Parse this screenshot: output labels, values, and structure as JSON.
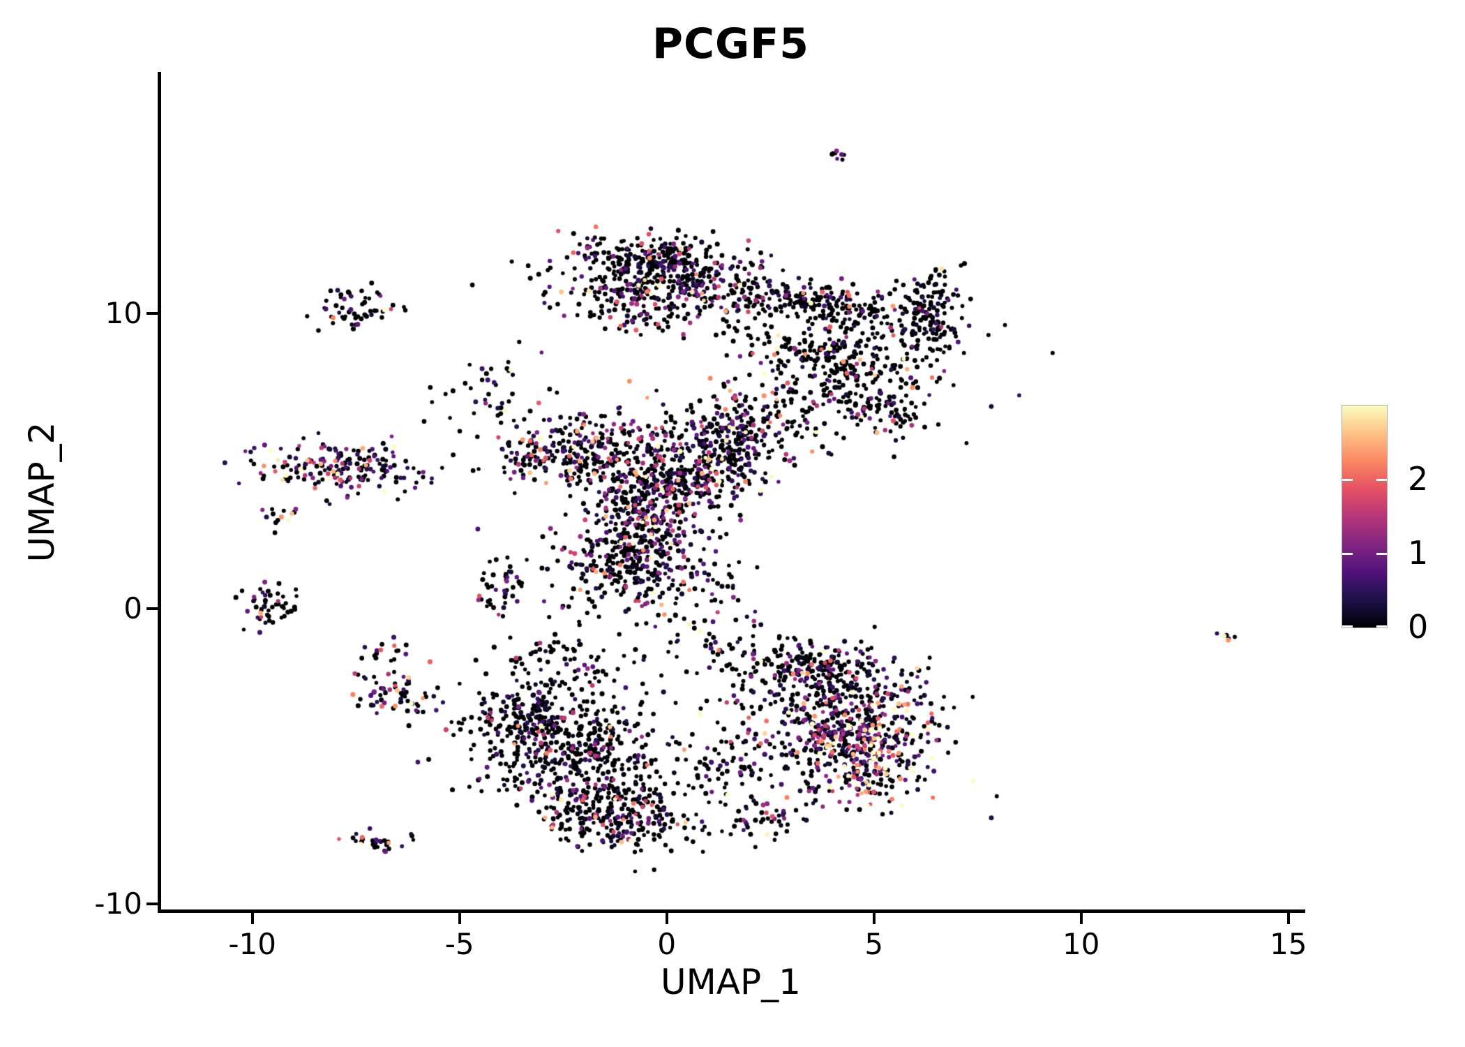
{
  "title": "PCGF5",
  "axes": {
    "x": {
      "label": "UMAP_1",
      "ticks": [
        -10,
        -5,
        0,
        5,
        10,
        15
      ],
      "range": [
        -12.25,
        15.34
      ]
    },
    "y": {
      "label": "UMAP_2",
      "ticks": [
        -10,
        0,
        10
      ],
      "range": [
        -10.24,
        18.13
      ]
    }
  },
  "colorbar": {
    "ticks": [
      0,
      1,
      2
    ],
    "vmin": 0,
    "vmax": 3,
    "palette": "magma",
    "palette_stops": [
      [
        0.0,
        "#000004"
      ],
      [
        0.125,
        "#1d1147"
      ],
      [
        0.25,
        "#51127c"
      ],
      [
        0.375,
        "#822681"
      ],
      [
        0.5,
        "#b63679"
      ],
      [
        0.625,
        "#e65164"
      ],
      [
        0.75,
        "#fb8861"
      ],
      [
        0.875,
        "#fec287"
      ],
      [
        1.0,
        "#fcfdbf"
      ]
    ]
  },
  "chart_data": {
    "type": "scatter",
    "title": "PCGF5",
    "xlabel": "UMAP_1",
    "ylabel": "UMAP_2",
    "xlim": [
      -12.25,
      15.34
    ],
    "ylim": [
      -10.24,
      18.13
    ],
    "grid": false,
    "legend_position": "right-colorbar",
    "color_scale": {
      "palette": "magma",
      "domain": [
        0,
        3
      ]
    },
    "point_count_approx": 5400,
    "clusters": [
      {
        "name": "top-tiny",
        "cx": 4.15,
        "cy": 15.45,
        "sx": 0.14,
        "sy": 0.12,
        "rot": 0,
        "n": 6,
        "p0": 0.5,
        "s": 0.9
      },
      {
        "name": "far-right-tiny",
        "cx": 13.5,
        "cy": -1.0,
        "sx": 0.12,
        "sy": 0.1,
        "rot": -35,
        "n": 4,
        "p0": 0.1,
        "s": 1.8
      },
      {
        "name": "upper-left-blob",
        "cx": -7.45,
        "cy": 10.2,
        "sx": 0.55,
        "sy": 0.38,
        "rot": 10,
        "n": 55,
        "p0": 0.76,
        "s": 0.7
      },
      {
        "name": "left-arm",
        "cx": -7.95,
        "cy": 4.75,
        "sx": 1.05,
        "sy": 0.42,
        "rot": -6,
        "n": 185,
        "p0": 0.45,
        "s": 1.05
      },
      {
        "name": "left-arm-tail",
        "cx": -9.35,
        "cy": 3.15,
        "sx": 0.25,
        "sy": 0.25,
        "rot": 0,
        "n": 12,
        "p0": 0.5,
        "s": 1.0
      },
      {
        "name": "left-zero-blob",
        "cx": -9.55,
        "cy": 0.05,
        "sx": 0.42,
        "sy": 0.35,
        "rot": 10,
        "n": 50,
        "p0": 0.7,
        "s": 0.8
      },
      {
        "name": "hook-blob",
        "cx": -6.85,
        "cy": -1.45,
        "sx": 0.28,
        "sy": 0.22,
        "rot": 0,
        "n": 14,
        "p0": 0.5,
        "s": 1.0
      },
      {
        "name": "hook-arc",
        "cx": -6.5,
        "cy": -2.95,
        "sx": 0.75,
        "sy": 0.4,
        "rot": -28,
        "n": 70,
        "p0": 0.45,
        "s": 1.1
      },
      {
        "name": "bottom-small",
        "cx": -7.0,
        "cy": -7.85,
        "sx": 0.4,
        "sy": 0.22,
        "rot": -10,
        "n": 28,
        "p0": 0.6,
        "s": 0.9
      },
      {
        "name": "head",
        "cx": -0.3,
        "cy": 10.95,
        "sx": 1.25,
        "sy": 0.8,
        "rot": 0,
        "n": 420,
        "p0": 0.62,
        "s": 0.9
      },
      {
        "name": "head-cap",
        "cx": -0.35,
        "cy": 11.9,
        "sx": 0.75,
        "sy": 0.3,
        "rot": 0,
        "n": 140,
        "p0": 0.72,
        "s": 0.8
      },
      {
        "name": "wing-upper",
        "cx": 3.6,
        "cy": 10.35,
        "sx": 1.55,
        "sy": 0.38,
        "rot": -14,
        "n": 270,
        "p0": 0.72,
        "s": 0.8
      },
      {
        "name": "wing-lower",
        "cx": 3.9,
        "cy": 8.55,
        "sx": 1.35,
        "sy": 0.4,
        "rot": -16,
        "n": 230,
        "p0": 0.7,
        "s": 0.85
      },
      {
        "name": "wing-corner",
        "cx": 6.35,
        "cy": 9.9,
        "sx": 0.35,
        "sy": 0.75,
        "rot": 0,
        "n": 150,
        "p0": 0.8,
        "s": 0.6
      },
      {
        "name": "wing-under-arc",
        "cx": 5.2,
        "cy": 6.7,
        "sx": 0.75,
        "sy": 0.4,
        "rot": -30,
        "n": 90,
        "p0": 0.68,
        "s": 0.8
      },
      {
        "name": "center-left",
        "cx": -2.3,
        "cy": 5.3,
        "sx": 0.95,
        "sy": 0.6,
        "rot": 15,
        "n": 270,
        "p0": 0.55,
        "s": 1.0
      },
      {
        "name": "center-mid",
        "cx": -0.2,
        "cy": 4.3,
        "sx": 1.0,
        "sy": 0.75,
        "rot": 55,
        "n": 400,
        "p0": 0.56,
        "s": 1.0
      },
      {
        "name": "center-low",
        "cx": -0.9,
        "cy": 1.9,
        "sx": 1.0,
        "sy": 0.7,
        "rot": 45,
        "n": 330,
        "p0": 0.55,
        "s": 1.0
      },
      {
        "name": "center-right",
        "cx": 1.6,
        "cy": 5.6,
        "sx": 0.95,
        "sy": 0.8,
        "rot": 50,
        "n": 320,
        "p0": 0.6,
        "s": 0.9
      },
      {
        "name": "left-offshoot",
        "cx": -3.95,
        "cy": 0.9,
        "sx": 0.35,
        "sy": 0.5,
        "rot": 0,
        "n": 45,
        "p0": 0.6,
        "s": 0.9
      },
      {
        "name": "dust-mid-gap",
        "cx": 0.3,
        "cy": 0.4,
        "sx": 1.0,
        "sy": 1.0,
        "rot": 0,
        "n": 110,
        "p0": 0.7,
        "s": 0.8
      },
      {
        "name": "dust-right-head",
        "cx": 3.1,
        "cy": 6.9,
        "sx": 1.1,
        "sy": 0.6,
        "rot": 0,
        "n": 85,
        "p0": 0.7,
        "s": 0.8
      },
      {
        "name": "dust-bottom-gap",
        "cx": 1.3,
        "cy": -5.4,
        "sx": 0.6,
        "sy": 0.7,
        "rot": 0,
        "n": 60,
        "p0": 0.7,
        "s": 0.8
      },
      {
        "name": "dust-left-mid",
        "cx": -2.3,
        "cy": -1.7,
        "sx": 0.9,
        "sy": 0.6,
        "rot": 0,
        "n": 70,
        "p0": 0.72,
        "s": 0.8
      },
      {
        "name": "dust-head-arm",
        "cx": -4.3,
        "cy": 7.3,
        "sx": 0.6,
        "sy": 0.7,
        "rot": 0,
        "n": 45,
        "p0": 0.7,
        "s": 0.8
      },
      {
        "name": "bottom-left-main",
        "cx": -2.4,
        "cy": -4.6,
        "sx": 1.15,
        "sy": 1.05,
        "rot": -25,
        "n": 500,
        "p0": 0.74,
        "s": 0.8
      },
      {
        "name": "bottom-left-low",
        "cx": -1.3,
        "cy": -6.9,
        "sx": 1.0,
        "sy": 0.65,
        "rot": -10,
        "n": 300,
        "p0": 0.7,
        "s": 0.8
      },
      {
        "name": "bottom-left-tip",
        "cx": -3.6,
        "cy": -3.5,
        "sx": 0.45,
        "sy": 0.6,
        "rot": 0,
        "n": 90,
        "p0": 0.75,
        "s": 0.7
      },
      {
        "name": "bottom-right-top",
        "cx": 3.4,
        "cy": -2.0,
        "sx": 1.1,
        "sy": 0.55,
        "rot": -8,
        "n": 240,
        "p0": 0.68,
        "s": 0.9
      },
      {
        "name": "bottom-right-main",
        "cx": 4.1,
        "cy": -4.1,
        "sx": 1.3,
        "sy": 1.15,
        "rot": 0,
        "n": 430,
        "p0": 0.5,
        "s": 1.0
      },
      {
        "name": "bottom-right-core",
        "cx": 4.9,
        "cy": -4.7,
        "sx": 0.75,
        "sy": 0.95,
        "rot": 0,
        "n": 270,
        "p0": 0.28,
        "s": 1.5
      },
      {
        "name": "bottom-right-tail",
        "cx": 2.5,
        "cy": -7.1,
        "sx": 0.45,
        "sy": 0.35,
        "rot": 0,
        "n": 40,
        "p0": 0.6,
        "s": 0.9
      }
    ],
    "highlight_points": [
      {
        "x": -8.05,
        "y": 9.85,
        "v": 2.2
      },
      {
        "x": -8.35,
        "y": 4.9,
        "v": 2.6
      },
      {
        "x": -9.3,
        "y": 3.1,
        "v": 2.3
      },
      {
        "x": -9.8,
        "y": -0.15,
        "v": 2.5
      },
      {
        "x": -6.55,
        "y": -3.3,
        "v": 2.3
      },
      {
        "x": -6.9,
        "y": -1.4,
        "v": 1.9
      },
      {
        "x": -7.35,
        "y": -7.75,
        "v": 2.0
      },
      {
        "x": 13.45,
        "y": -0.93,
        "v": 2.95
      },
      {
        "x": 13.55,
        "y": -1.07,
        "v": 2.3
      },
      {
        "x": 4.1,
        "y": 15.5,
        "v": 1.1
      },
      {
        "x": 4.22,
        "y": 15.38,
        "v": 0.8
      },
      {
        "x": -0.9,
        "y": 7.7,
        "v": 2.3
      },
      {
        "x": 1.05,
        "y": 7.8,
        "v": 2.2
      },
      {
        "x": -2.1,
        "y": 5.0,
        "v": 2.5
      },
      {
        "x": -0.3,
        "y": 3.0,
        "v": 2.4
      },
      {
        "x": 1.9,
        "y": 4.3,
        "v": 2.2
      },
      {
        "x": -1.5,
        "y": 1.2,
        "v": 2.3
      },
      {
        "x": 0.4,
        "y": 0.9,
        "v": 2.1
      },
      {
        "x": 2.6,
        "y": 8.6,
        "v": 2.2
      },
      {
        "x": 4.4,
        "y": 10.6,
        "v": 2.1
      },
      {
        "x": -3.3,
        "y": 4.6,
        "v": 2.6
      },
      {
        "x": -2.9,
        "y": -4.9,
        "v": 2.2
      },
      {
        "x": -0.8,
        "y": -6.6,
        "v": 2.1
      },
      {
        "x": 5.0,
        "y": -4.4,
        "v": 2.6
      },
      {
        "x": 4.6,
        "y": -5.3,
        "v": 2.3
      },
      {
        "x": 5.3,
        "y": -5.6,
        "v": 2.7
      },
      {
        "x": 4.3,
        "y": -3.6,
        "v": 2.2
      },
      {
        "x": 5.6,
        "y": -4.9,
        "v": 2.4
      },
      {
        "x": 2.9,
        "y": -6.4,
        "v": 2.2
      },
      {
        "x": 3.4,
        "y": -2.2,
        "v": 2.3
      },
      {
        "x": 5.1,
        "y": -3.2,
        "v": 2.5
      },
      {
        "x": 4.8,
        "y": -6.2,
        "v": 2.4
      }
    ]
  }
}
